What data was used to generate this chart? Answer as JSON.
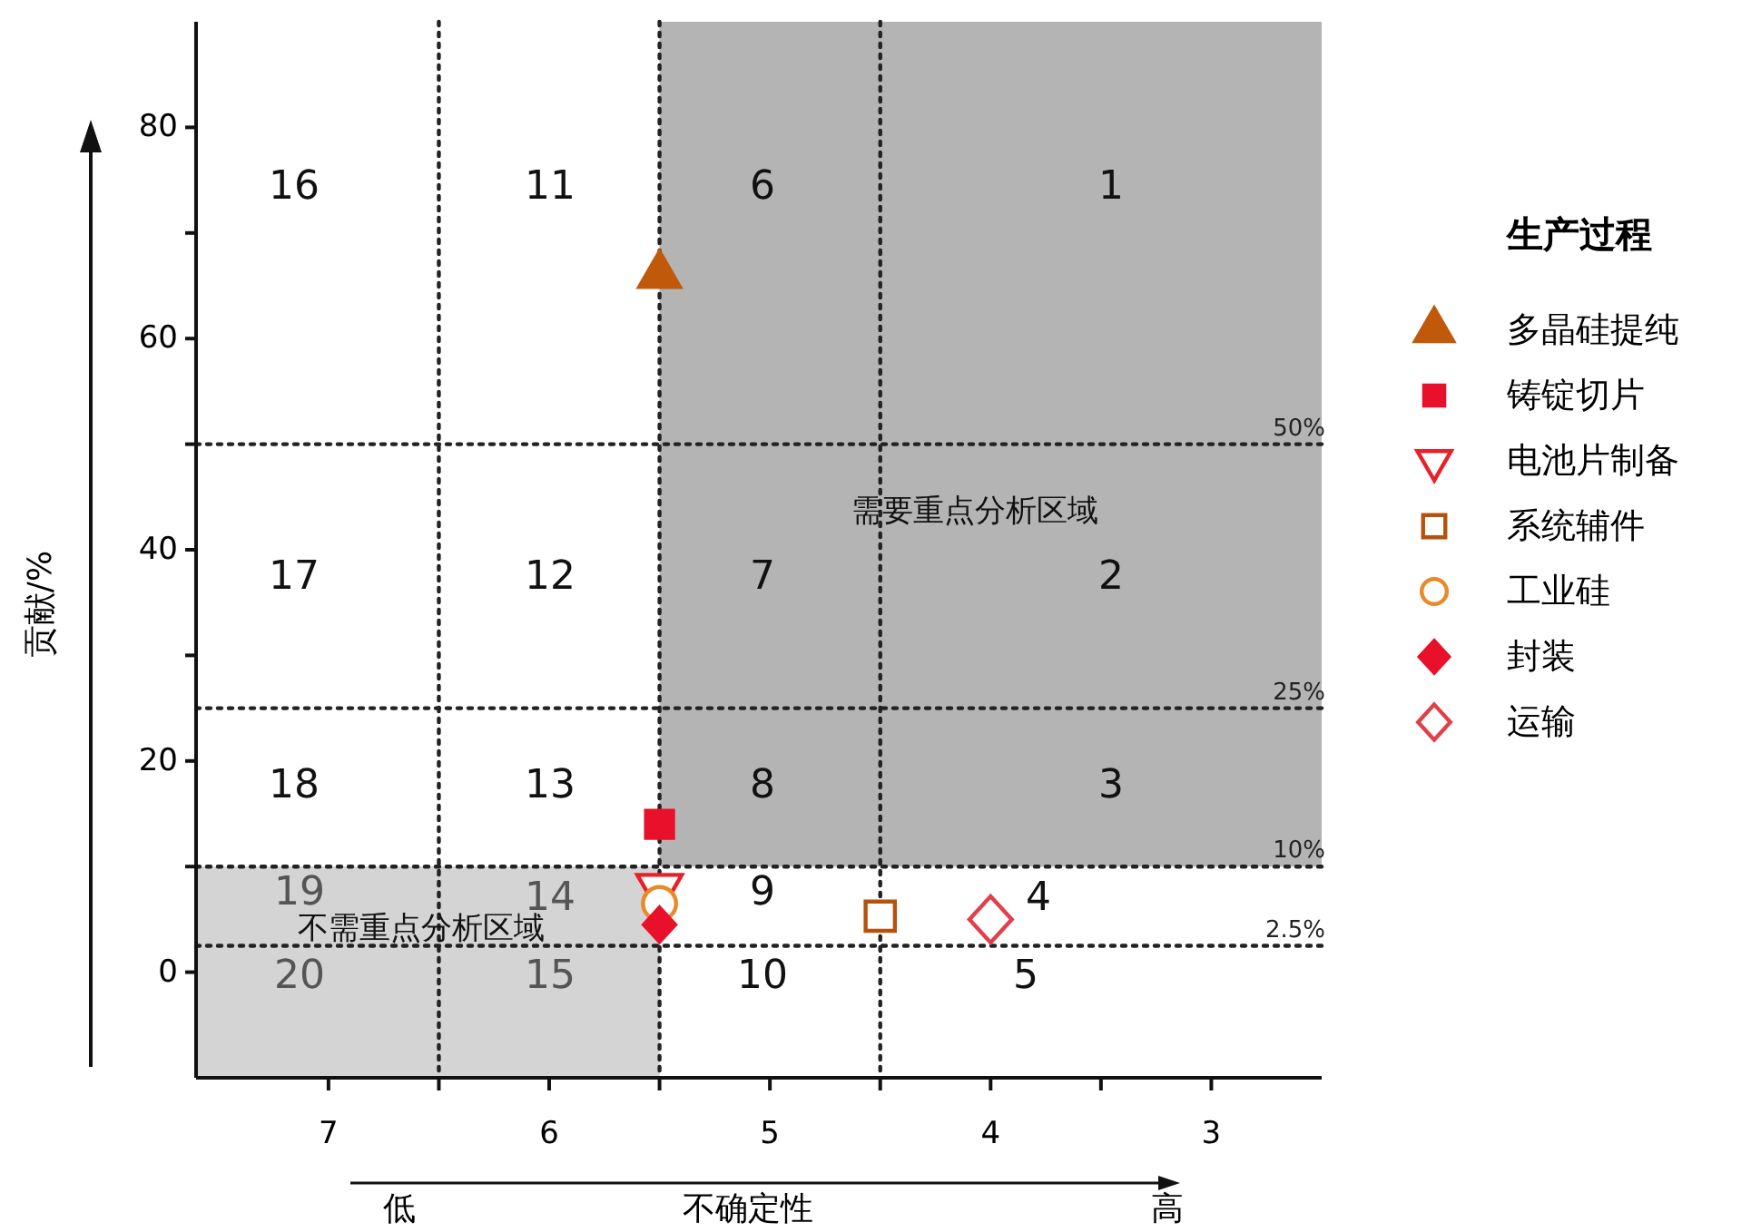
{
  "chart_data": {
    "type": "scatter",
    "xlabel": "不确定性",
    "ylabel": "贡献/%",
    "legend_title": "生产过程",
    "legend": "right",
    "grid": false,
    "xlim": [
      7.6,
      2.5
    ],
    "xticks": [
      7,
      {
        "value": 6.5,
        "label": null
      },
      6,
      {
        "value": 5.5,
        "label": null
      },
      5,
      {
        "value": 4.5,
        "label": null
      },
      4,
      {
        "value": 3.5,
        "label": null
      },
      3
    ],
    "ylim": [
      -10,
      90
    ],
    "yticks": [
      0,
      {
        "value": 10,
        "label": null
      },
      20,
      {
        "value": 30,
        "label": null
      },
      40,
      {
        "value": 50,
        "label": null
      },
      60,
      {
        "value": 70,
        "label": null
      },
      80
    ],
    "bands": [
      {
        "axis": "x",
        "from": 5.5,
        "to": 2.5,
        "color": "#b4b4b4"
      },
      {
        "axis": "x",
        "from": 7.6,
        "to": 5.5,
        "color": "#d4d4d4"
      }
    ],
    "ref_lines": [
      {
        "axis": "y",
        "value": 50,
        "label": "50%",
        "line_style": "dotted"
      },
      {
        "axis": "y",
        "value": 25,
        "label": "25%",
        "line_style": "dotted"
      },
      {
        "axis": "y",
        "value": 10,
        "label": "10%",
        "line_style": "dotted"
      },
      {
        "axis": "y",
        "value": 2.5,
        "label": "2.5%",
        "line_style": "dotted"
      },
      {
        "axis": "x",
        "value": 6.5,
        "line_style": "dotted"
      },
      {
        "axis": "x",
        "value": 5.5,
        "line_style": "dotted"
      },
      {
        "axis": "x",
        "value": 4.5,
        "line_style": "dotted"
      }
    ],
    "series": [
      {
        "name": "多晶硅提纯",
        "color": "#c0590a",
        "marker": "triangle",
        "x": [
          5.5
        ],
        "values": [
          66
        ]
      },
      {
        "name": "铸锭切片",
        "color": "#e8102a",
        "marker": "square",
        "x": [
          5.5
        ],
        "values": [
          14
        ]
      },
      {
        "name": "电池片制备",
        "color": "#e8202a",
        "marker": "triangle-down-open",
        "x": [
          5.5
        ],
        "values": [
          8
        ]
      },
      {
        "name": "系统辅件",
        "color": "#b5520c",
        "marker": "square-open",
        "x": [
          4.5
        ],
        "values": [
          5.3
        ]
      },
      {
        "name": "工业硅",
        "color": "#e88a2a",
        "marker": "circle-open",
        "x": [
          5.5
        ],
        "values": [
          6.5
        ]
      },
      {
        "name": "封装",
        "color": "#e8102a",
        "marker": "diamond",
        "x": [
          5.5
        ],
        "values": [
          4.5
        ]
      },
      {
        "name": "运输",
        "color": "#e0404a",
        "marker": "diamond-open",
        "x": [
          4
        ],
        "values": [
          5
        ]
      }
    ],
    "annotations": [
      "1",
      "2",
      "3",
      "4",
      "5",
      "6",
      "7",
      "8",
      "9",
      "10",
      "11",
      "12",
      "13",
      "14",
      "15",
      "16",
      "17",
      "18",
      "19",
      "20",
      "需要重点分析区域",
      "不需重点分析区域",
      "低",
      "高"
    ]
  }
}
